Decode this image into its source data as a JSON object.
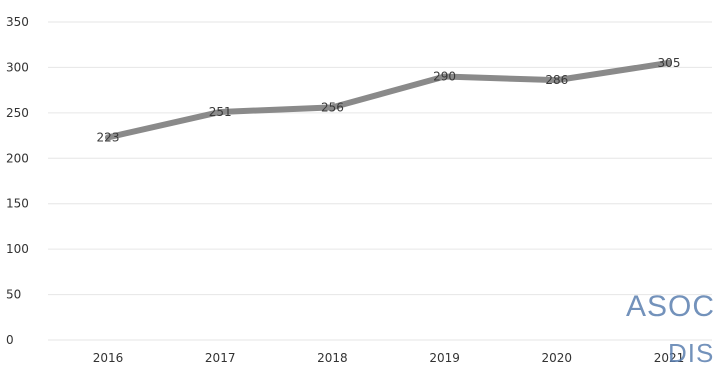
{
  "chart_data": {
    "type": "line",
    "title": "",
    "xlabel": "",
    "ylabel": "",
    "categories": [
      "2016",
      "2017",
      "2018",
      "2019",
      "2020",
      "2021"
    ],
    "series": [
      {
        "values": [
          223,
          251,
          256,
          290,
          286,
          305
        ],
        "color": "#8a8a8a"
      }
    ],
    "ylim": [
      0,
      350
    ],
    "yticks": [
      "0",
      "50",
      "100",
      "150",
      "200",
      "250",
      "300",
      "350"
    ],
    "data_labels": [
      "223",
      "251",
      "256",
      "290",
      "286",
      "305"
    ],
    "grid": true,
    "legend": "none"
  },
  "stamp": {
    "line1": "ASOC",
    "line2": "DIS"
  }
}
